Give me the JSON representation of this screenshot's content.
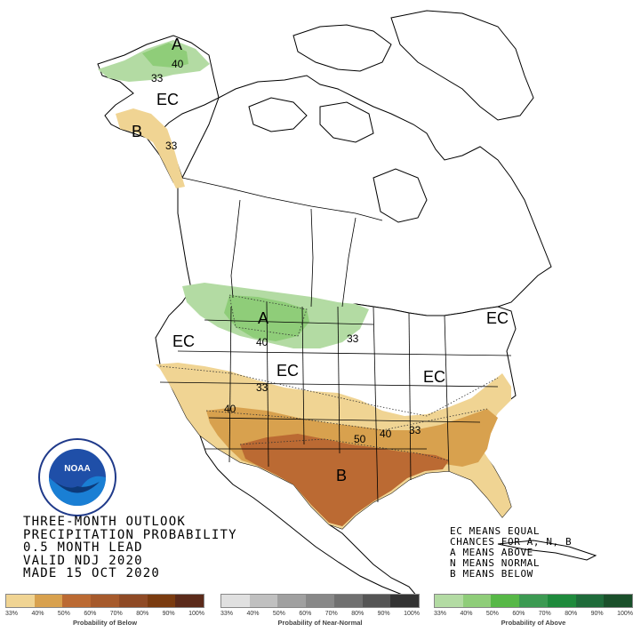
{
  "map": {
    "labels": {
      "a_alaska": "A",
      "ec_alaska": "EC",
      "b_alaska": "B",
      "a_north": "A",
      "ec_west": "EC",
      "ec_central": "EC",
      "ec_east": "EC",
      "ec_northeast": "EC",
      "b_south": "B"
    },
    "contours": {
      "c40_alaska": "40",
      "c33_alaska": "33",
      "c33_alaska_s": "33",
      "c40_north": "40",
      "c33_north": "33",
      "c33_central": "33",
      "c40_southwest": "40",
      "c50_south": "50",
      "c40_south": "40",
      "c33_south": "33"
    },
    "colors": {
      "below_33": "#f0d493",
      "below_40": "#d8a14e",
      "below_50": "#bb6a33",
      "above_33": "#b3dba3",
      "above_40": "#8fcd79",
      "land": "#ffffff",
      "border": "#000000"
    }
  },
  "title_block": {
    "line1": "THREE-MONTH OUTLOOK",
    "line2": "PRECIPITATION PROBABILITY",
    "line3": "0.5 MONTH LEAD",
    "line4": "VALID NDJ 2020",
    "line5": "MADE 15 OCT 2020"
  },
  "key_block": {
    "line1": "EC MEANS EQUAL",
    "line2": "CHANCES FOR A, N, B",
    "line3": "A MEANS ABOVE",
    "line4": "N MEANS NORMAL",
    "line5": "B MEANS BELOW"
  },
  "logo": {
    "text": "NOAA",
    "icon": "noaa-logo-icon"
  },
  "legend": {
    "below": {
      "title": "Probability of Below",
      "ticks": [
        "33%",
        "40%",
        "50%",
        "60%",
        "70%",
        "80%",
        "90%",
        "100%"
      ],
      "colors": [
        "#f0d493",
        "#d8a14e",
        "#bb6a33",
        "#a65a2c",
        "#8f4a25",
        "#7a3b10",
        "#5b2a1a"
      ]
    },
    "normal": {
      "title": "Probability of Near-Normal",
      "ticks": [
        "33%",
        "40%",
        "50%",
        "60%",
        "70%",
        "80%",
        "90%",
        "100%"
      ],
      "colors": [
        "#e0e0e0",
        "#c0c0c0",
        "#a0a0a0",
        "#888888",
        "#707070",
        "#555555",
        "#333333"
      ]
    },
    "above": {
      "title": "Probability of Above",
      "ticks": [
        "33%",
        "40%",
        "50%",
        "60%",
        "70%",
        "80%",
        "90%",
        "100%"
      ],
      "colors": [
        "#b3dba3",
        "#8fcd79",
        "#57b847",
        "#3c9a52",
        "#1f8a3c",
        "#1f6b3a",
        "#1a4f2a"
      ]
    }
  }
}
